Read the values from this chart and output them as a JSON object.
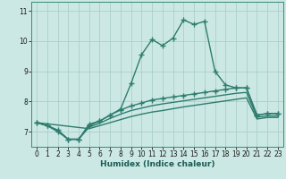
{
  "xlabel": "Humidex (Indice chaleur)",
  "bg_color": "#cce8e4",
  "line_color": "#2e7d6e",
  "grid_color": "#aacfca",
  "x_values": [
    0,
    1,
    2,
    3,
    4,
    5,
    6,
    7,
    8,
    9,
    10,
    11,
    12,
    13,
    14,
    15,
    16,
    17,
    18,
    19,
    20,
    21,
    22,
    23
  ],
  "line1_y": [
    7.3,
    7.2,
    7.0,
    6.75,
    6.75,
    7.25,
    7.35,
    7.55,
    7.75,
    8.6,
    9.55,
    10.05,
    9.85,
    10.1,
    10.7,
    10.55,
    10.65,
    9.0,
    8.55,
    8.45,
    8.45,
    7.55,
    7.6,
    7.6
  ],
  "line2_y": [
    7.3,
    7.2,
    7.05,
    6.75,
    6.75,
    7.2,
    7.35,
    7.55,
    7.72,
    7.85,
    7.95,
    8.05,
    8.1,
    8.15,
    8.2,
    8.25,
    8.3,
    8.35,
    8.4,
    8.45,
    8.45,
    7.55,
    7.6,
    7.6
  ],
  "line3_y": [
    7.3,
    7.2,
    7.05,
    6.75,
    6.75,
    7.15,
    7.28,
    7.44,
    7.58,
    7.7,
    7.78,
    7.86,
    7.92,
    7.97,
    8.02,
    8.07,
    8.12,
    8.17,
    8.22,
    8.27,
    8.3,
    7.48,
    7.52,
    7.52
  ],
  "line4_y": [
    7.3,
    null,
    null,
    null,
    null,
    7.1,
    7.2,
    7.3,
    7.4,
    7.5,
    7.58,
    7.65,
    7.7,
    7.76,
    7.82,
    7.87,
    7.92,
    7.97,
    8.02,
    8.07,
    8.12,
    7.42,
    7.47,
    7.47
  ],
  "ylim": [
    6.5,
    11.3
  ],
  "xlim": [
    -0.5,
    23.5
  ],
  "yticks": [
    7,
    8,
    9,
    10,
    11
  ],
  "xticks": [
    0,
    1,
    2,
    3,
    4,
    5,
    6,
    7,
    8,
    9,
    10,
    11,
    12,
    13,
    14,
    15,
    16,
    17,
    18,
    19,
    20,
    21,
    22,
    23
  ],
  "linewidth": 1.0,
  "marker": "+"
}
